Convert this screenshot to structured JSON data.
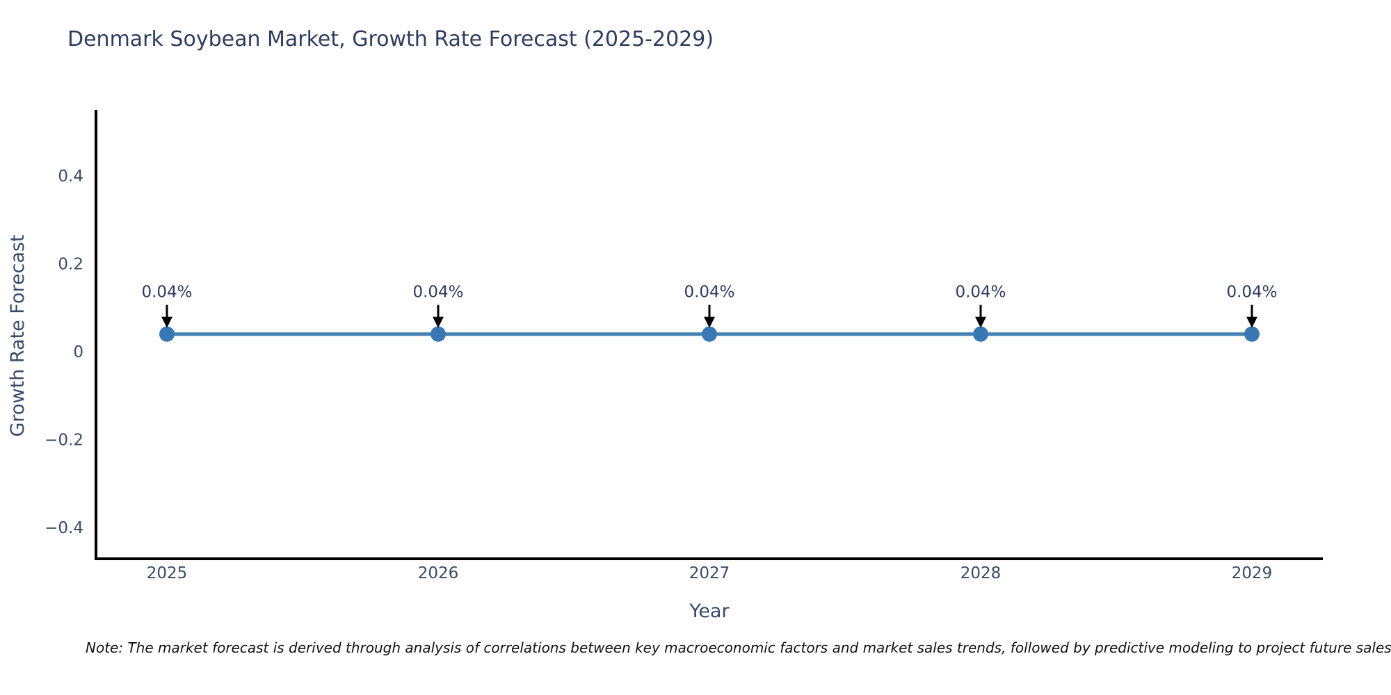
{
  "title": "Denmark Soybean Market, Growth Rate Forecast (2025-2029)",
  "note": "Note: The market forecast is derived through analysis of correlations between key macroeconomic factors and market sales trends, followed by predictive modeling to project future sales.",
  "colors": {
    "title_text": "#2e3c5e",
    "axis_text": "#3b4a68",
    "line": "#4682b4",
    "marker": "#3a77b5",
    "arrow": "#000000",
    "spine": "#000000",
    "annotation_text": "#2e3c5e",
    "note_text": "#111111",
    "background": "#ffffff"
  },
  "chart_data": {
    "type": "line",
    "title": "Denmark Soybean Market, Growth Rate Forecast (2025-2029)",
    "xlabel": "Year",
    "ylabel": "Growth Rate Forecast",
    "x": [
      2025,
      2026,
      2027,
      2028,
      2029
    ],
    "categories": [
      "2025",
      "2026",
      "2027",
      "2028",
      "2029"
    ],
    "values": [
      0.04,
      0.04,
      0.04,
      0.04,
      0.04
    ],
    "point_labels": [
      "0.04%",
      "0.04%",
      "0.04%",
      "0.04%",
      "0.04%"
    ],
    "y_ticks": [
      0.4,
      0.2,
      0,
      -0.2,
      -0.4
    ],
    "y_tick_labels": [
      "0.4",
      "0.2",
      "0",
      "−0.2",
      "−0.4"
    ],
    "xlim": [
      2024.74,
      2029.26
    ],
    "ylim": [
      -0.47,
      0.55
    ],
    "grid": false,
    "legend": null,
    "marker_style": "circle",
    "annotation_style": "value label with downward arrow to each point"
  }
}
